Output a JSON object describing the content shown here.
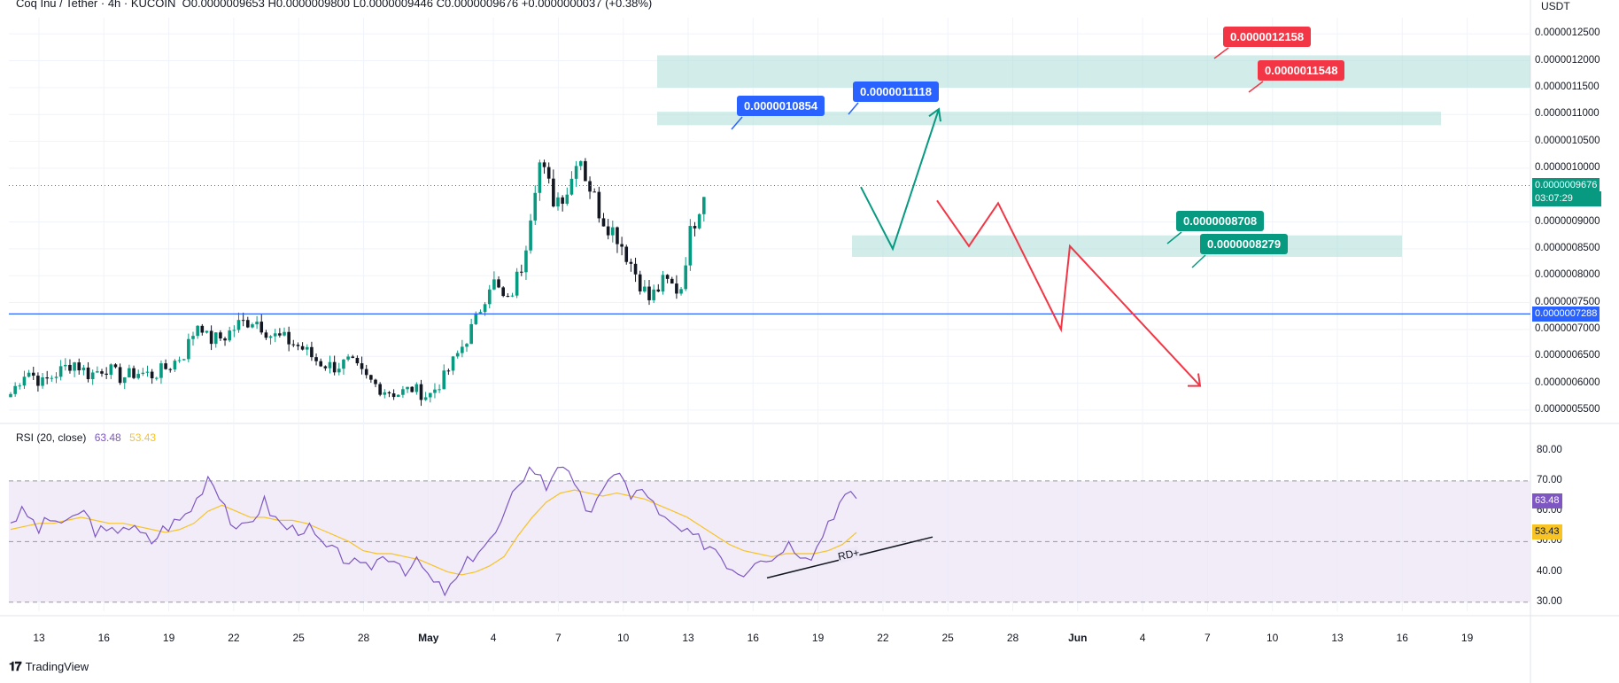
{
  "header": {
    "symbol_line": "Coq Inu / Tether · 4h · KUCOIN",
    "ohlc": "O0.0000009653 H0.0000009800 L0.0000009446 C0.0000009676 +0.0000000037 (+0.38%)",
    "unit": "USDT"
  },
  "rsi_header": {
    "label": "RSI (20, close)",
    "rsi_value": "63.48",
    "ma_value": "53.43"
  },
  "brand": {
    "name": "TradingView"
  },
  "colors": {
    "up": "#089981",
    "down": "#131722",
    "accent_blue": "#2962ff",
    "red": "#f23645",
    "zone": "#b2dfdb",
    "rsi_line": "#7e57c2",
    "rsi_ma": "#f7c325",
    "rsi_band": "#ede7f6"
  },
  "chart_data": [
    {
      "type": "candlestick",
      "title": "Coq Inu / Tether · 4h · KUCOIN",
      "y_ticks": [
        "0.0000012500",
        "0.0000012000",
        "0.0000011500",
        "0.0000011000",
        "0.0000010500",
        "0.0000010000",
        "0.0000009000",
        "0.0000008500",
        "0.0000008000",
        "0.0000007500",
        "0.0000007000",
        "0.0000006500",
        "0.0000006000",
        "0.0000005500"
      ],
      "ylim": [
        5.3e-07,
        1.28e-06
      ],
      "x_ticks": [
        "13",
        "16",
        "19",
        "22",
        "25",
        "28",
        "May",
        "4",
        "7",
        "10",
        "13",
        "16",
        "19",
        "22",
        "25",
        "28",
        "Jun",
        "4",
        "7",
        "10",
        "13",
        "16",
        "19"
      ],
      "price_path": [
        [
          0,
          5.8e-07
        ],
        [
          2,
          6.25e-07
        ],
        [
          4,
          6e-07
        ],
        [
          6,
          6.2e-07
        ],
        [
          8,
          6.4e-07
        ],
        [
          10,
          6.15e-07
        ],
        [
          12,
          6.3e-07
        ],
        [
          14,
          6.1e-07
        ],
        [
          16,
          6.2e-07
        ],
        [
          18,
          6.15e-07
        ],
        [
          20,
          6.3e-07
        ],
        [
          22,
          6.55e-07
        ],
        [
          24,
          7.2e-07
        ],
        [
          25,
          6.8e-07
        ],
        [
          27,
          6.85e-07
        ],
        [
          29,
          7.1e-07
        ],
        [
          31,
          7.2e-07
        ],
        [
          33,
          6.9e-07
        ],
        [
          35,
          6.8e-07
        ],
        [
          37,
          6.65e-07
        ],
        [
          39,
          6.4e-07
        ],
        [
          41,
          6.3e-07
        ],
        [
          43,
          6.4e-07
        ],
        [
          45,
          6.1e-07
        ],
        [
          47,
          5.9e-07
        ],
        [
          49,
          5.8e-07
        ],
        [
          51,
          5.9e-07
        ],
        [
          53,
          5.75e-07
        ],
        [
          55,
          6.1e-07
        ],
        [
          57,
          6.6e-07
        ],
        [
          59,
          7.15e-07
        ],
        [
          61,
          7.95e-07
        ],
        [
          63,
          7.45e-07
        ],
        [
          65,
          8.25e-07
        ],
        [
          67,
          1.015e-06
        ],
        [
          69,
          9.4e-07
        ],
        [
          71,
          9.65e-07
        ],
        [
          72,
          1.04e-06
        ],
        [
          73,
          9.85e-07
        ],
        [
          75,
          9.1e-07
        ],
        [
          77,
          8.75e-07
        ],
        [
          79,
          8.15e-07
        ],
        [
          81,
          7.55e-07
        ],
        [
          83,
          7.9e-07
        ],
        [
          85,
          7.7e-07
        ],
        [
          86,
          8.65e-07
        ],
        [
          88,
          9.6e-07
        ]
      ],
      "current_price": "0.0000009676",
      "countdown": "03:07:29",
      "horizontal_line": "0.0000007288",
      "zones": [
        {
          "from": 1.15e-06,
          "to": 1.21e-06
        },
        {
          "from": 1.08e-06,
          "to": 1.105e-06
        },
        {
          "from": 8.35e-07,
          "to": 8.75e-07
        }
      ],
      "projection_up": [
        [
          9.65e-07
        ],
        [
          8.5e-07
        ],
        [
          1.11e-06
        ]
      ],
      "projection_down": [
        [
          9.4e-07
        ],
        [
          8.55e-07
        ],
        [
          9.35e-07
        ],
        [
          7e-07
        ],
        [
          8.55e-07
        ],
        [
          5.95e-07
        ]
      ],
      "price_labels": [
        {
          "text": "0.0000012158",
          "color": "#f23645"
        },
        {
          "text": "0.0000011548",
          "color": "#f23645"
        },
        {
          "text": "0.0000010854",
          "color": "#2962ff"
        },
        {
          "text": "0.0000011118",
          "color": "#2962ff"
        },
        {
          "text": "0.0000008708",
          "color": "#089981"
        },
        {
          "text": "0.0000008279",
          "color": "#089981"
        }
      ]
    },
    {
      "type": "line",
      "title": "RSI (20, close)",
      "y_ticks": [
        "80.00",
        "70.00",
        "60.00",
        "50.00",
        "40.00",
        "30.00"
      ],
      "ylim": [
        27,
        84
      ],
      "bands": [
        70,
        50,
        30
      ],
      "rsi_series": [
        57,
        60,
        54,
        58,
        55,
        61,
        54,
        52,
        56,
        53,
        50,
        55,
        57,
        62,
        72,
        65,
        52,
        57,
        63,
        56,
        54,
        55,
        49,
        46,
        44,
        40,
        44,
        46,
        41,
        43,
        36,
        33,
        40,
        47,
        50,
        57,
        70,
        75,
        68,
        78,
        67,
        60,
        65,
        76,
        64,
        68,
        58,
        55,
        52,
        50,
        48,
        42,
        40,
        46,
        44,
        50,
        47,
        46,
        57,
        64,
        65
      ],
      "ma_series": [
        54,
        55,
        56,
        56,
        57,
        58,
        57,
        56,
        56,
        55,
        54,
        53,
        54,
        56,
        60,
        62,
        60,
        58,
        58,
        57,
        57,
        56,
        54,
        52,
        50,
        47,
        46,
        46,
        45,
        44,
        42,
        40,
        39,
        40,
        42,
        45,
        52,
        58,
        63,
        66,
        67,
        66,
        65,
        66,
        65,
        64,
        62,
        60,
        58,
        55,
        52,
        49,
        47,
        46,
        45,
        46,
        46,
        46,
        47,
        49,
        53
      ],
      "current_rsi": "63.48",
      "current_ma": "53.43",
      "annotation": "RD+"
    }
  ]
}
